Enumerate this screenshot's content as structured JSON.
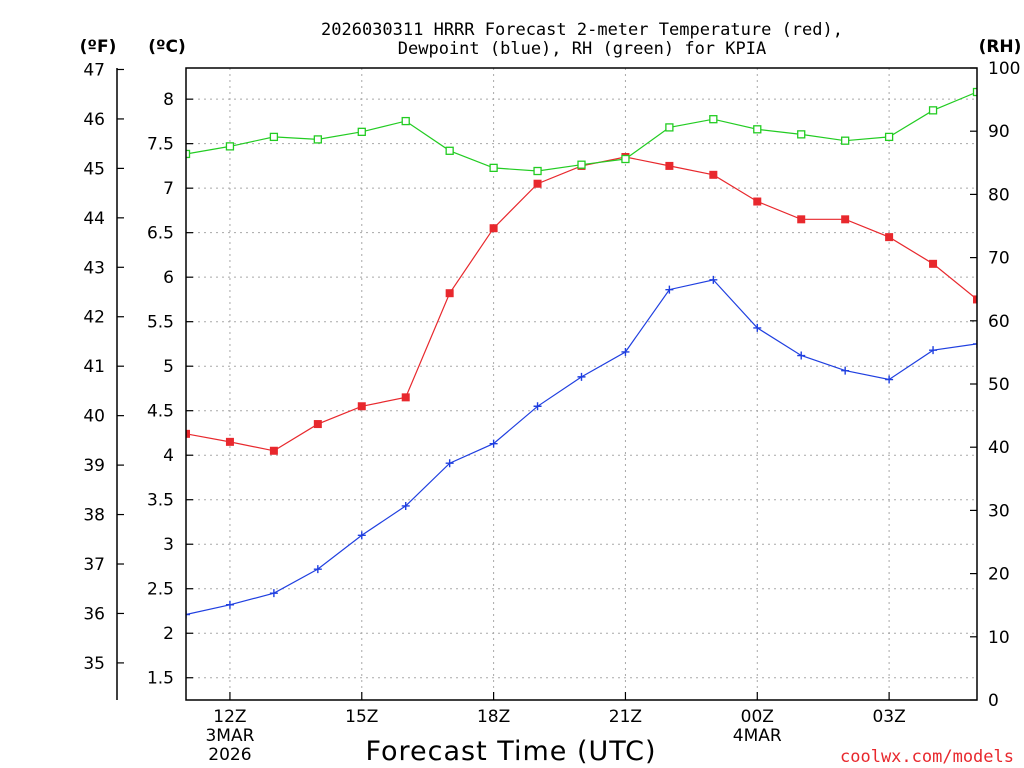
{
  "chart_data": {
    "type": "line",
    "title": [
      "2026030311 HRRR Forecast 2-meter Temperature (red),",
      "Dewpoint (blue), RH (green) for KPIA"
    ],
    "xlabel": "Forecast Time (UTC)",
    "credit": "coolwx.com/models",
    "left_axis_f": {
      "unit_label": "(ºF)",
      "ticks": [
        35,
        36,
        37,
        38,
        39,
        40,
        41,
        42,
        43,
        44,
        45,
        46,
        47
      ]
    },
    "left_axis_c": {
      "unit_label": "(ºC)",
      "ticks": [
        "1.5",
        "2",
        "2.5",
        "3",
        "3.5",
        "4",
        "4.5",
        "5",
        "5.5",
        "6",
        "6.5",
        "7",
        "7.5",
        "8"
      ],
      "ylim": [
        1.25,
        8.35
      ]
    },
    "right_axis": {
      "unit_label": "(RH)",
      "ticks": [
        0,
        10,
        20,
        30,
        40,
        50,
        60,
        70,
        80,
        90,
        100
      ],
      "ylim": [
        0,
        100
      ]
    },
    "x_hours": [
      11,
      12,
      13,
      14,
      15,
      16,
      17,
      18,
      19,
      20,
      21,
      22,
      23,
      24,
      25,
      26,
      27,
      28,
      29
    ],
    "xlim": [
      11,
      29
    ],
    "x_ticks": [
      {
        "hour": 12,
        "label": "12Z",
        "sub1": "3MAR",
        "sub2": "2026"
      },
      {
        "hour": 15,
        "label": "15Z",
        "sub1": "",
        "sub2": ""
      },
      {
        "hour": 18,
        "label": "18Z",
        "sub1": "",
        "sub2": ""
      },
      {
        "hour": 21,
        "label": "21Z",
        "sub1": "",
        "sub2": ""
      },
      {
        "hour": 24,
        "label": "00Z",
        "sub1": "4MAR",
        "sub2": ""
      },
      {
        "hour": 27,
        "label": "03Z",
        "sub1": "",
        "sub2": ""
      }
    ],
    "grid": true,
    "series": [
      {
        "name": "Temperature",
        "axis": "celsius",
        "color": "#e8282d",
        "marker": "filled-square",
        "values": [
          4.24,
          4.15,
          4.05,
          4.35,
          4.55,
          4.65,
          5.82,
          6.55,
          7.05,
          7.25,
          7.35,
          7.25,
          7.15,
          6.85,
          6.65,
          6.65,
          6.45,
          6.15,
          5.75
        ]
      },
      {
        "name": "Dewpoint",
        "axis": "celsius",
        "color": "#1f3fe0",
        "marker": "plus",
        "values": [
          2.21,
          2.32,
          2.45,
          2.72,
          3.1,
          3.43,
          3.91,
          4.13,
          4.55,
          4.88,
          5.16,
          5.86,
          5.97,
          5.43,
          5.12,
          4.95,
          4.85,
          5.18,
          5.25
        ]
      },
      {
        "name": "RH",
        "axis": "rh",
        "color": "#22cc22",
        "marker": "open-square",
        "values": [
          86.4,
          87.6,
          89.1,
          88.7,
          89.9,
          91.6,
          86.9,
          84.2,
          83.7,
          84.7,
          85.6,
          90.6,
          91.9,
          90.3,
          89.5,
          88.5,
          89.1,
          93.3,
          96.2
        ]
      }
    ]
  }
}
